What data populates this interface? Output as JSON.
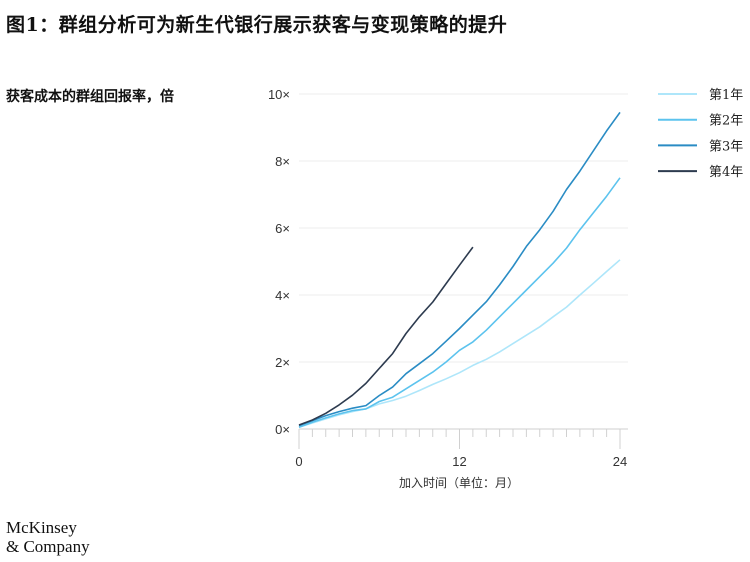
{
  "title": "图1：群组分析可为新生代银行展示获客与变现策略的提升",
  "logo": {
    "line1": "McKinsey",
    "line2": "& Company"
  },
  "chart_data": {
    "type": "line",
    "title": "图1：群组分析可为新生代银行展示获客与变现策略的提升",
    "ylabel": "获客成本的群组回报率，倍",
    "xlabel": "加入时间（单位：月）",
    "xlim": [
      0,
      24
    ],
    "ylim": [
      0,
      10
    ],
    "x_ticks": [
      0,
      12,
      24
    ],
    "x_tick_labels": [
      "0",
      "12",
      "24"
    ],
    "y_ticks": [
      0,
      2,
      4,
      6,
      8,
      10
    ],
    "y_tick_labels": [
      "0×",
      "2×",
      "4×",
      "6×",
      "8×",
      "10×"
    ],
    "grid": true,
    "legend_position": "right",
    "series": [
      {
        "name": "第1年",
        "color": "#aee6fa",
        "x": [
          0,
          1,
          2,
          3,
          4,
          5,
          6,
          7,
          8,
          9,
          10,
          11,
          12,
          13,
          14,
          15,
          16,
          17,
          18,
          19,
          20,
          21,
          22,
          23,
          24
        ],
        "values": [
          0.05,
          0.18,
          0.3,
          0.42,
          0.52,
          0.6,
          0.75,
          0.85,
          0.98,
          1.15,
          1.33,
          1.5,
          1.68,
          1.9,
          2.08,
          2.3,
          2.55,
          2.8,
          3.05,
          3.35,
          3.64,
          4.0,
          4.35,
          4.7,
          5.05
        ]
      },
      {
        "name": "第2年",
        "color": "#5cc3ee",
        "x": [
          0,
          1,
          2,
          3,
          4,
          5,
          6,
          7,
          8,
          9,
          10,
          11,
          12,
          13,
          14,
          15,
          16,
          17,
          18,
          19,
          20,
          21,
          22,
          23,
          24
        ],
        "values": [
          0.05,
          0.2,
          0.33,
          0.45,
          0.55,
          0.6,
          0.82,
          0.95,
          1.2,
          1.45,
          1.7,
          2.0,
          2.35,
          2.6,
          2.95,
          3.35,
          3.75,
          4.15,
          4.55,
          4.95,
          5.4,
          5.95,
          6.45,
          6.95,
          7.5
        ]
      },
      {
        "name": "第3年",
        "color": "#2a8cc4",
        "x": [
          0,
          1,
          2,
          3,
          4,
          5,
          6,
          7,
          8,
          9,
          10,
          11,
          12,
          13,
          14,
          15,
          16,
          17,
          18,
          19,
          20,
          21,
          22,
          23,
          24
        ],
        "values": [
          0.1,
          0.25,
          0.4,
          0.52,
          0.62,
          0.7,
          1.0,
          1.25,
          1.65,
          1.95,
          2.25,
          2.62,
          3.0,
          3.4,
          3.8,
          4.3,
          4.85,
          5.45,
          5.95,
          6.5,
          7.15,
          7.7,
          8.3,
          8.9,
          9.45
        ]
      },
      {
        "name": "第4年",
        "color": "#2d3b4f",
        "x": [
          0,
          1,
          2,
          3,
          4,
          5,
          6,
          7,
          8,
          9,
          10,
          11,
          12,
          13
        ],
        "values": [
          0.12,
          0.27,
          0.47,
          0.72,
          1.01,
          1.36,
          1.81,
          2.25,
          2.85,
          3.35,
          3.79,
          4.34,
          4.89,
          5.43
        ]
      }
    ]
  }
}
